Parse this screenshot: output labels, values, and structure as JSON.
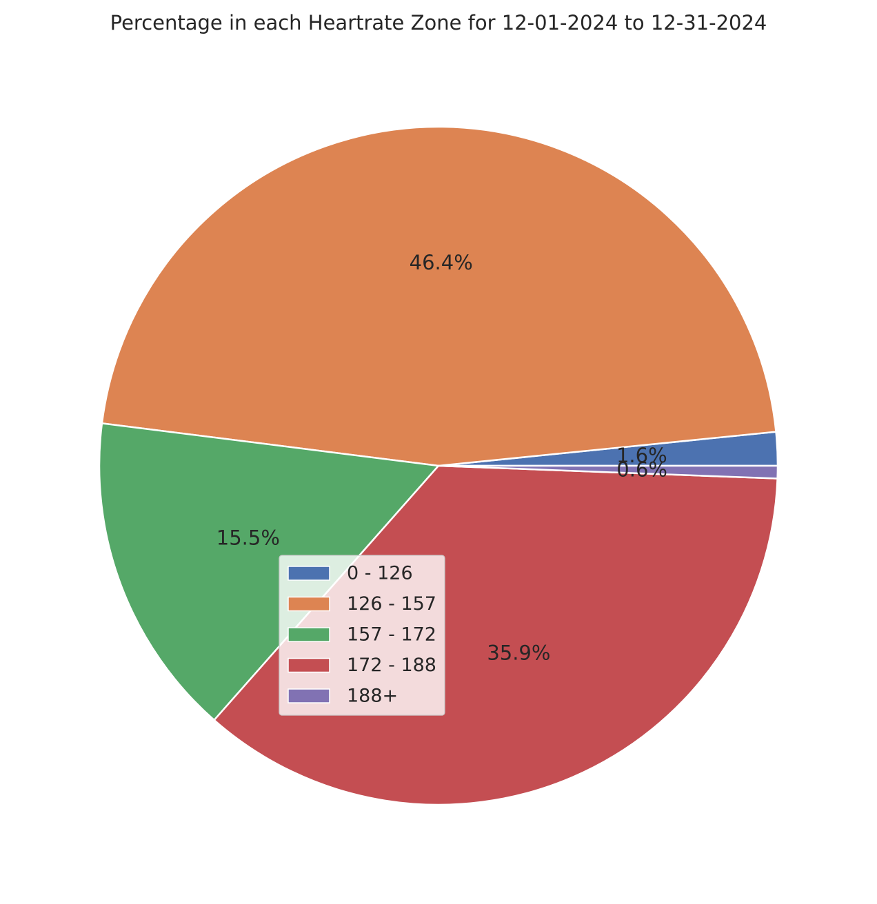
{
  "chart_data": {
    "type": "pie",
    "title": "Percentage in each Heartrate Zone for 12-01-2024 to  12-31-2024",
    "categories": [
      "0 - 126",
      "126 - 157",
      "157 - 172",
      "172 - 188",
      "188+"
    ],
    "values": [
      1.6,
      46.4,
      15.5,
      35.9,
      0.6
    ],
    "value_labels": [
      "1.6%",
      "46.4%",
      "15.5%",
      "35.9%",
      "0.6%"
    ],
    "colors": [
      "#4c72b0",
      "#dd8452",
      "#55a868",
      "#c44e52",
      "#8172b3"
    ],
    "start_angle_deg": 0,
    "direction": "counterclockwise",
    "legend_position": "lower center"
  }
}
